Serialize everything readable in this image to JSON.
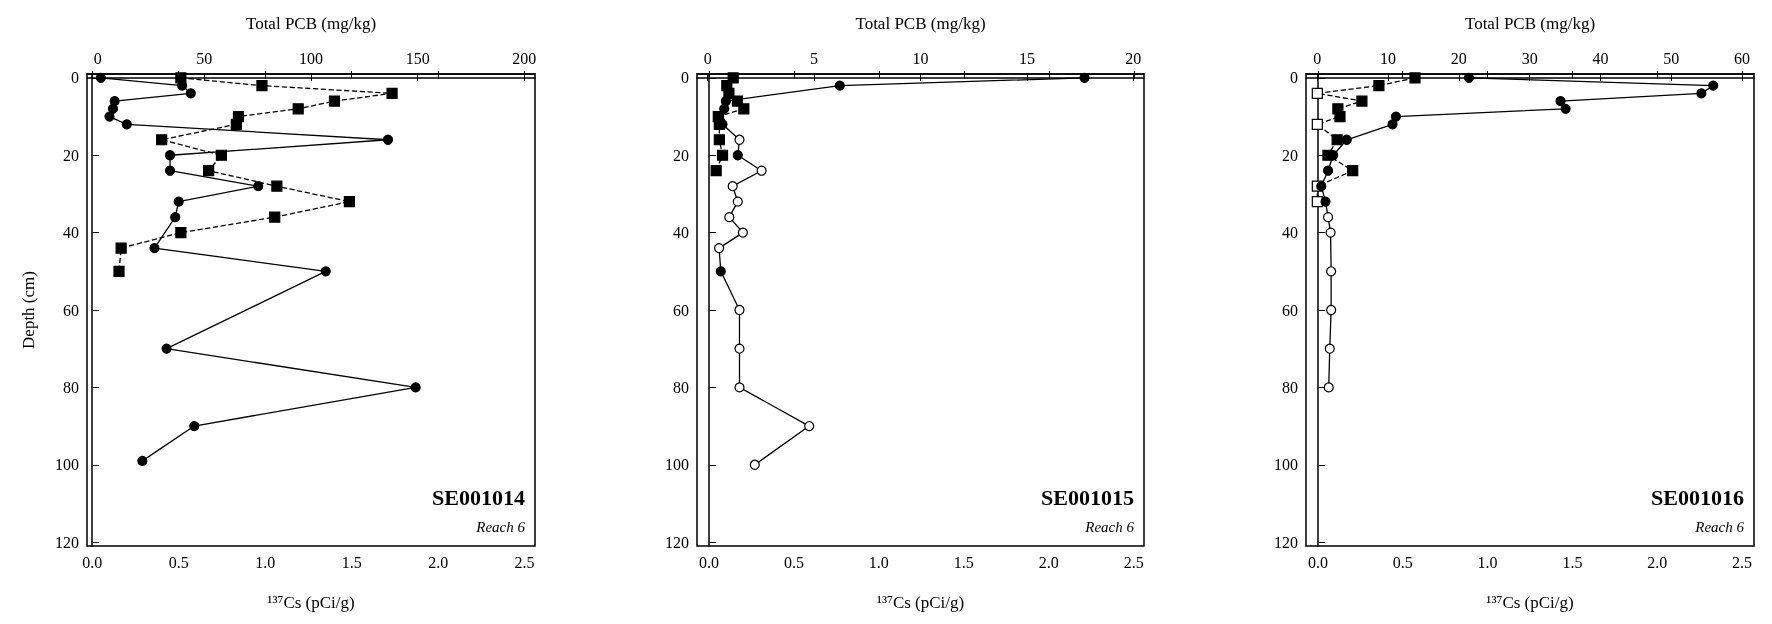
{
  "chart_data": [
    {
      "type": "line",
      "xlabel": "¹³⁷Cs (pCi/g)",
      "x2label": "Total PCB (mg/kg)",
      "ylabel": "Depth (cm)",
      "annotations": [
        "SE001014",
        "Reach 6"
      ],
      "xlim": [
        -0.03,
        2.56
      ],
      "xticks": [
        {
          "value": 0,
          "label": "0.0"
        },
        0.5,
        {
          "value": 1,
          "label": "1.0"
        },
        1.5,
        {
          "value": 2,
          "label": "2.0"
        },
        2.5
      ],
      "x2lim": [
        -5,
        205
      ],
      "x2ticks": [
        0,
        50,
        100,
        150,
        200
      ],
      "ylim": [
        121,
        -1
      ],
      "yticks": [
        0,
        20,
        40,
        60,
        80,
        100,
        120
      ],
      "series": [
        {
          "type": "line",
          "marker": "circle",
          "line_style": "solid",
          "color": "#000000",
          "x": [
            0.05,
            0.52,
            0.57,
            0.13,
            0.12,
            0.1,
            0.2,
            1.71,
            0.45,
            0.45,
            0.96,
            0.5,
            0.48,
            0.36,
            1.35,
            0.43,
            1.87,
            0.59,
            0.29
          ],
          "values": [
            0,
            2,
            4,
            6,
            8,
            10,
            12,
            16,
            20,
            24,
            28,
            32,
            36,
            44,
            50,
            70,
            80,
            90,
            99
          ]
        },
        {
          "type": "line",
          "axis": "x2",
          "marker": "square",
          "line_style": "dashed",
          "color": "#000000",
          "x": [
            39,
            77,
            138,
            111,
            94,
            66,
            65,
            30,
            58,
            52,
            84,
            118,
            83,
            39,
            11,
            10
          ],
          "values": [
            0,
            2,
            4,
            6,
            8,
            10,
            12,
            16,
            20,
            24,
            28,
            32,
            36,
            40,
            44,
            50
          ]
        }
      ]
    },
    {
      "type": "line",
      "xlabel": "¹³⁷Cs (pCi/g)",
      "x2label": "Total PCB (mg/kg)",
      "annotations": [
        "SE001015",
        "Reach 6"
      ],
      "xlim": [
        -0.07,
        2.56
      ],
      "xticks": [
        {
          "value": 0,
          "label": "0.0"
        },
        0.5,
        {
          "value": 1,
          "label": "1.0"
        },
        1.5,
        {
          "value": 2,
          "label": "2.0"
        },
        2.5
      ],
      "x2lim": [
        -0.5,
        20.5
      ],
      "x2ticks": [
        0,
        5,
        10,
        15,
        20
      ],
      "ylim": [
        121,
        -1
      ],
      "yticks": [
        0,
        20,
        40,
        60,
        80,
        100,
        120
      ],
      "series": [
        {
          "type": "line",
          "marker": "circle",
          "line_style": "solid",
          "color": "#000000",
          "x": [
            2.21,
            0.77,
            0.1,
            0.09,
            0.06,
            0.08,
            0.18,
            0.17,
            0.31,
            0.14,
            0.17,
            0.12,
            0.2,
            0.06,
            0.07,
            0.18,
            0.18,
            0.18,
            0.59,
            0.27
          ],
          "values": [
            0,
            2,
            6,
            8,
            10,
            12,
            16,
            20,
            24,
            28,
            32,
            36,
            40,
            44,
            50,
            60,
            70,
            80,
            90,
            100
          ],
          "colors": [
            "#000000",
            "#000000",
            "#000000",
            "#000000",
            "#000000",
            "#000000",
            "#ffffff",
            "#000000",
            "#ffffff",
            "#ffffff",
            "#ffffff",
            "#ffffff",
            "#ffffff",
            "#ffffff",
            "#000000",
            "#ffffff",
            "#ffffff",
            "#ffffff",
            "#ffffff",
            "#ffffff"
          ]
        },
        {
          "type": "line",
          "axis": "x2",
          "marker": "square",
          "line_style": "dashed",
          "color": "#000000",
          "x": [
            1.2,
            0.9,
            1.0,
            1.4,
            1.7,
            0.5,
            0.55,
            0.55,
            0.7,
            0.4
          ],
          "values": [
            0,
            2,
            4,
            6,
            8,
            10,
            12,
            16,
            20,
            24
          ]
        }
      ]
    },
    {
      "type": "line",
      "xlabel": "¹³⁷Cs (pCi/g)",
      "x2label": "Total PCB (mg/kg)",
      "annotations": [
        "SE001016",
        "Reach 6"
      ],
      "xlim": [
        -0.07,
        2.57
      ],
      "xticks": [
        {
          "value": 0,
          "label": "0.0"
        },
        0.5,
        {
          "value": 1,
          "label": "1.0"
        },
        1.5,
        {
          "value": 2,
          "label": "2.0"
        },
        2.5
      ],
      "x2lim": [
        -1.6,
        61.7
      ],
      "x2ticks": [
        0,
        10,
        20,
        30,
        40,
        50,
        60
      ],
      "ylim": [
        121,
        -1
      ],
      "yticks": [
        0,
        20,
        40,
        60,
        80,
        100,
        120
      ],
      "series": [
        {
          "type": "line",
          "marker": "circle",
          "line_style": "solid",
          "color": "#000000",
          "x": [
            0.89,
            2.33,
            2.26,
            1.43,
            1.46,
            0.46,
            0.44,
            0.17,
            0.09,
            0.06,
            0.02,
            0.045,
            0.06,
            0.075,
            0.078,
            0.078,
            0.07,
            0.064
          ],
          "values": [
            0,
            2,
            4,
            6,
            8,
            10,
            12,
            16,
            20,
            24,
            28,
            32,
            36,
            40,
            50,
            60,
            70,
            80
          ],
          "colors": [
            "#000000",
            "#000000",
            "#000000",
            "#000000",
            "#000000",
            "#000000",
            "#000000",
            "#000000",
            "#000000",
            "#000000",
            "#000000",
            "#000000",
            "#ffffff",
            "#ffffff",
            "#ffffff",
            "#ffffff",
            "#ffffff",
            "#ffffff"
          ]
        },
        {
          "type": "line",
          "axis": "x2",
          "marker": "square",
          "line_style": "dashed",
          "color": "#000000",
          "x": [
            13.8,
            8.7,
            0,
            6.3,
            2.9,
            3.2,
            0,
            2.8,
            1.5,
            5.0,
            0,
            0
          ],
          "values": [
            0,
            2,
            4,
            6,
            8,
            10,
            12,
            16,
            20,
            24,
            28,
            32
          ],
          "colors": [
            "#000000",
            "#000000",
            "#ffffff",
            "#000000",
            "#000000",
            "#000000",
            "#ffffff",
            "#000000",
            "#000000",
            "#000000",
            "#ffffff",
            "#ffffff"
          ]
        }
      ]
    }
  ]
}
